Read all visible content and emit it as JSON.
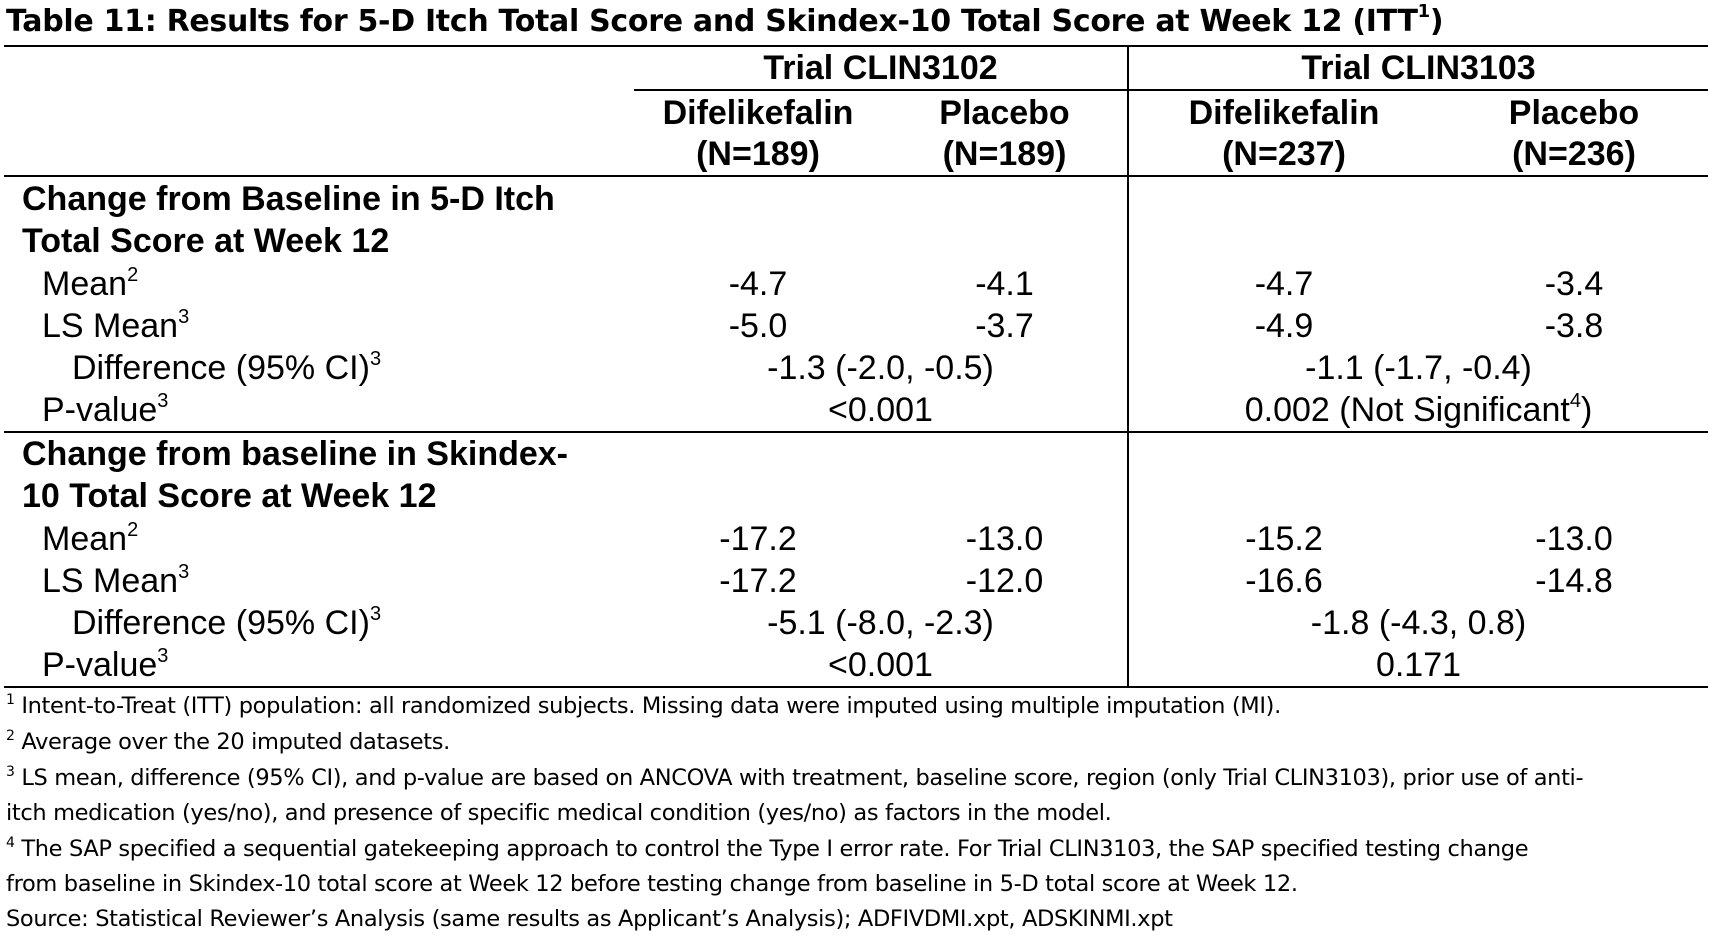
{
  "title": {
    "text": "Table 11: Results for 5-D Itch Total Score and Skindex-10 Total Score at Week 12 (ITT",
    "sup": "1",
    "close": ")"
  },
  "trials": [
    {
      "label": "Trial CLIN3102",
      "arms": [
        {
          "name": "Difelikefalin",
          "n": "(N=189)"
        },
        {
          "name": "Placebo",
          "n": "(N=189)"
        }
      ]
    },
    {
      "label": "Trial CLIN3103",
      "arms": [
        {
          "name": "Difelikefalin",
          "n": "(N=237)"
        },
        {
          "name": "Placebo",
          "n": "(N=236)"
        }
      ]
    }
  ],
  "sections": [
    {
      "heading": [
        "Change from Baseline in 5-D Itch",
        "Total Score at Week 12"
      ],
      "mean": {
        "label": "Mean",
        "sup": "2",
        "values": [
          "-4.7",
          "-4.1",
          "-4.7",
          "-3.4"
        ]
      },
      "lsmean": {
        "label": "LS Mean",
        "sup": "3",
        "values": [
          "-5.0",
          "-3.7",
          "-4.9",
          "-3.8"
        ]
      },
      "diff": {
        "label": "Difference (95% CI)",
        "sup": "3",
        "values": [
          "-1.3 (-2.0, -0.5)",
          "-1.1 (-1.7, -0.4)"
        ]
      },
      "pvalue": {
        "label": "P-value",
        "sup": "3",
        "values": [
          "<0.001",
          "0.002 (Not Significant"
        ],
        "v2_sup": "4",
        "v2_close": ")"
      }
    },
    {
      "heading": [
        "Change from baseline in Skindex-",
        "10 Total Score at Week 12"
      ],
      "mean": {
        "label": "Mean",
        "sup": "2",
        "values": [
          "-17.2",
          "-13.0",
          "-15.2",
          "-13.0"
        ]
      },
      "lsmean": {
        "label": "LS Mean",
        "sup": "3",
        "values": [
          "-17.2",
          "-12.0",
          "-16.6",
          "-14.8"
        ]
      },
      "diff": {
        "label": "Difference (95% CI)",
        "sup": "3",
        "values": [
          "-5.1 (-8.0, -2.3)",
          "-1.8 (-4.3, 0.8)"
        ]
      },
      "pvalue": {
        "label": "P-value",
        "sup": "3",
        "values": [
          "<0.001",
          "0.171"
        ]
      }
    }
  ],
  "footnotes": [
    {
      "sup": "1",
      "lines": [
        " Intent-to-Treat (ITT) population: all randomized subjects. Missing data were imputed using multiple imputation (MI)."
      ]
    },
    {
      "sup": "2",
      "lines": [
        " Average over the 20 imputed datasets."
      ]
    },
    {
      "sup": "3",
      "lines": [
        " LS mean, difference (95% CI), and p-value are based on ANCOVA with treatment, baseline score, region (only Trial CLIN3103), prior use of anti-",
        "itch medication (yes/no), and presence of specific medical condition (yes/no) as factors in the model."
      ]
    },
    {
      "sup": "4",
      "lines": [
        " The SAP specified a sequential gatekeeping approach to control the Type I error rate. For Trial CLIN3103, the SAP specified testing change",
        "from baseline in Skindex-10 total score at Week 12 before testing change from baseline in 5-D total score at Week 12."
      ]
    }
  ],
  "source": "Source: Statistical Reviewer’s Analysis (same results as Applicant’s Analysis); ADFIVDMI.xpt, ADSKINMI.xpt"
}
